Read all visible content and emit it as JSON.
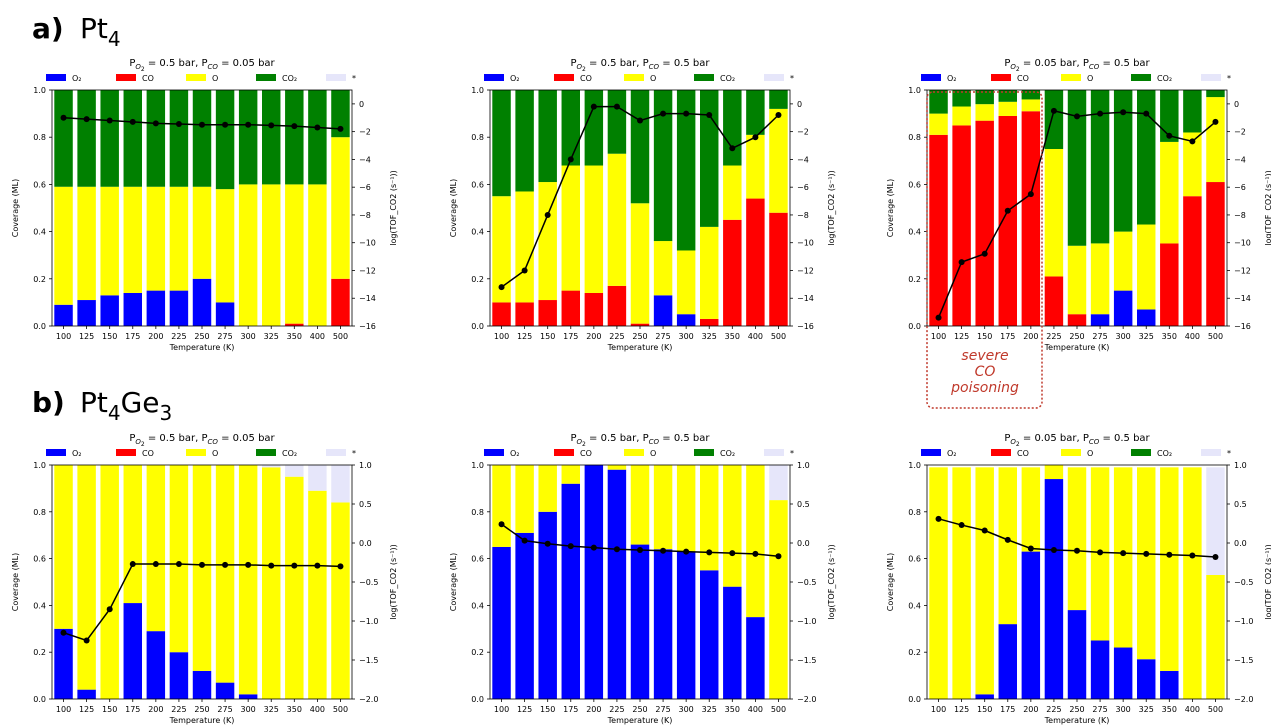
{
  "figure": {
    "row_a_label": "a)",
    "row_a_species": "Pt",
    "row_a_sub": "4",
    "row_b_label": "b)",
    "row_b_species_1": "Pt",
    "row_b_sub_1": "4",
    "row_b_species_2": "Ge",
    "row_b_sub_2": "3",
    "annotation": [
      "severe",
      "CO",
      "poisoning"
    ]
  },
  "colors": {
    "O2": "#0000ff",
    "CO": "#ff0000",
    "O": "#ffff00",
    "CO2": "#008000",
    "star": "#e6e6fa",
    "line": "#000000",
    "annotation": "#c0392b"
  },
  "legend": [
    "O₂",
    "CO",
    "O",
    "CO₂",
    "*"
  ],
  "chart_data": [
    {
      "type": "bar",
      "stacked": true,
      "title": "P_O2 = 0.5 bar, P_CO = 0.05 bar",
      "xlabel": "Temperature (K)",
      "ylabel": "Coverage (ML)",
      "y2label": "log(TOF_CO2 (s⁻¹))",
      "categories": [
        "100",
        "125",
        "150",
        "175",
        "200",
        "225",
        "250",
        "275",
        "300",
        "325",
        "350",
        "400",
        "500"
      ],
      "ylim": [
        0,
        1
      ],
      "y2lim": [
        -16,
        1
      ],
      "yticks": [
        "0.0",
        "0.2",
        "0.4",
        "0.6",
        "0.8",
        "1.0"
      ],
      "y2ticks": [
        "0",
        "−2",
        "−4",
        "−6",
        "−8",
        "−10",
        "−12",
        "−14",
        "−16"
      ],
      "series": [
        {
          "name": "O₂",
          "values": [
            0.09,
            0.11,
            0.13,
            0.14,
            0.15,
            0.15,
            0.2,
            0.1,
            0,
            0,
            0,
            0,
            0
          ]
        },
        {
          "name": "CO",
          "values": [
            0,
            0,
            0,
            0,
            0,
            0,
            0,
            0,
            0,
            0,
            0.01,
            0,
            0.2
          ]
        },
        {
          "name": "O",
          "values": [
            0.5,
            0.48,
            0.46,
            0.45,
            0.44,
            0.44,
            0.39,
            0.48,
            0.6,
            0.6,
            0.59,
            0.6,
            0.6
          ]
        },
        {
          "name": "CO₂",
          "values": [
            0.41,
            0.41,
            0.41,
            0.41,
            0.41,
            0.41,
            0.41,
            0.42,
            0.4,
            0.4,
            0.4,
            0.4,
            0.2
          ]
        },
        {
          "name": "*",
          "values": [
            0,
            0,
            0,
            0,
            0,
            0,
            0,
            0,
            0,
            0,
            0,
            0,
            0
          ]
        }
      ],
      "line": {
        "name": "log TOF",
        "values": [
          -1.0,
          -1.1,
          -1.2,
          -1.3,
          -1.4,
          -1.45,
          -1.5,
          -1.5,
          -1.5,
          -1.55,
          -1.6,
          -1.7,
          -1.8
        ]
      }
    },
    {
      "type": "bar",
      "stacked": true,
      "title": "P_O2 = 0.5 bar, P_CO = 0.5 bar",
      "xlabel": "Temperature (K)",
      "ylabel": "Coverage (ML)",
      "y2label": "log(TOF_CO2 (s⁻¹))",
      "categories": [
        "100",
        "125",
        "150",
        "175",
        "200",
        "225",
        "250",
        "275",
        "300",
        "325",
        "350",
        "400",
        "500"
      ],
      "ylim": [
        0,
        1
      ],
      "y2lim": [
        -16,
        1
      ],
      "yticks": [
        "0.0",
        "0.2",
        "0.4",
        "0.6",
        "0.8",
        "1.0"
      ],
      "y2ticks": [
        "0",
        "−2",
        "−4",
        "−6",
        "−8",
        "−10",
        "−12",
        "−14",
        "−16"
      ],
      "series": [
        {
          "name": "O₂",
          "values": [
            0,
            0,
            0,
            0,
            0,
            0,
            0,
            0.13,
            0.05,
            0,
            0,
            0,
            0
          ]
        },
        {
          "name": "CO",
          "values": [
            0.1,
            0.1,
            0.11,
            0.15,
            0.14,
            0.17,
            0.01,
            0,
            0,
            0.03,
            0.45,
            0.54,
            0.48
          ]
        },
        {
          "name": "O",
          "values": [
            0.45,
            0.47,
            0.5,
            0.53,
            0.54,
            0.56,
            0.51,
            0.23,
            0.27,
            0.39,
            0.23,
            0.27,
            0.44
          ]
        },
        {
          "name": "CO₂",
          "values": [
            0.45,
            0.43,
            0.39,
            0.32,
            0.32,
            0.27,
            0.48,
            0.64,
            0.68,
            0.58,
            0.32,
            0.19,
            0.08
          ]
        },
        {
          "name": "*",
          "values": [
            0,
            0,
            0,
            0,
            0,
            0,
            0,
            0,
            0,
            0,
            0,
            0,
            0
          ]
        }
      ],
      "line": {
        "name": "log TOF",
        "values": [
          -13.2,
          -12.0,
          -8.0,
          -4.0,
          -0.2,
          -0.2,
          -1.2,
          -0.7,
          -0.7,
          -0.8,
          -3.2,
          -2.4,
          -0.8
        ]
      }
    },
    {
      "type": "bar",
      "stacked": true,
      "title": "P_O2 = 0.05 bar, P_CO = 0.5 bar",
      "xlabel": "Temperature (K)",
      "ylabel": "Coverage (ML)",
      "y2label": "log(TOF_CO2 (s⁻¹))",
      "categories": [
        "100",
        "125",
        "150",
        "175",
        "200",
        "225",
        "250",
        "275",
        "300",
        "325",
        "350",
        "400",
        "500"
      ],
      "ylim": [
        0,
        1
      ],
      "y2lim": [
        -16,
        1
      ],
      "yticks": [
        "0.0",
        "0.2",
        "0.4",
        "0.6",
        "0.8",
        "1.0"
      ],
      "y2ticks": [
        "0",
        "−2",
        "−4",
        "−6",
        "−8",
        "−10",
        "−12",
        "−14",
        "−16"
      ],
      "series": [
        {
          "name": "O₂",
          "values": [
            0,
            0,
            0,
            0,
            0,
            0,
            0,
            0.05,
            0.15,
            0.07,
            0,
            0,
            0
          ]
        },
        {
          "name": "CO",
          "values": [
            0.81,
            0.85,
            0.87,
            0.89,
            0.91,
            0.21,
            0.05,
            0,
            0,
            0,
            0.35,
            0.55,
            0.61
          ]
        },
        {
          "name": "O",
          "values": [
            0.09,
            0.08,
            0.07,
            0.06,
            0.05,
            0.54,
            0.29,
            0.3,
            0.25,
            0.36,
            0.43,
            0.27,
            0.36
          ]
        },
        {
          "name": "CO₂",
          "values": [
            0.1,
            0.07,
            0.06,
            0.05,
            0.04,
            0.25,
            0.66,
            0.65,
            0.6,
            0.57,
            0.22,
            0.18,
            0.03
          ]
        },
        {
          "name": "*",
          "values": [
            0,
            0,
            0,
            0,
            0,
            0,
            0,
            0,
            0,
            0,
            0,
            0,
            0
          ]
        }
      ],
      "line": {
        "name": "log TOF",
        "values": [
          -15.4,
          -11.4,
          -10.8,
          -7.7,
          -6.5,
          -0.5,
          -0.9,
          -0.7,
          -0.6,
          -0.7,
          -2.3,
          -2.7,
          -1.3
        ]
      },
      "highlight_categories": [
        "100",
        "125",
        "150",
        "175",
        "200"
      ]
    },
    {
      "type": "bar",
      "stacked": true,
      "title": "P_O2 = 0.5 bar, P_CO = 0.05 bar",
      "xlabel": "Temperature (K)",
      "ylabel": "Coverage (ML)",
      "y2label": "log(TOF_CO2 (s⁻¹))",
      "categories": [
        "100",
        "125",
        "150",
        "175",
        "200",
        "225",
        "250",
        "275",
        "300",
        "325",
        "350",
        "400",
        "500"
      ],
      "ylim": [
        0,
        1
      ],
      "y2lim": [
        -2,
        1
      ],
      "yticks": [
        "0.0",
        "0.2",
        "0.4",
        "0.6",
        "0.8",
        "1.0"
      ],
      "y2ticks": [
        "−2.0",
        "−1.5",
        "−1.0",
        "−0.5",
        "0.0",
        "0.5",
        "1.0"
      ],
      "series": [
        {
          "name": "O₂",
          "values": [
            0.3,
            0.04,
            0,
            0.41,
            0.29,
            0.2,
            0.12,
            0.07,
            0.02,
            0,
            0,
            0,
            0
          ]
        },
        {
          "name": "CO",
          "values": [
            0,
            0,
            0,
            0,
            0,
            0,
            0,
            0,
            0,
            0,
            0,
            0,
            0
          ]
        },
        {
          "name": "O",
          "values": [
            0.7,
            0.96,
            1.0,
            0.59,
            0.71,
            0.8,
            0.88,
            0.93,
            0.98,
            0.99,
            0.95,
            0.89,
            0.84
          ]
        },
        {
          "name": "CO₂",
          "values": [
            0,
            0,
            0,
            0,
            0,
            0,
            0,
            0,
            0,
            0,
            0,
            0,
            0
          ]
        },
        {
          "name": "*",
          "values": [
            0,
            0,
            0,
            0,
            0,
            0,
            0,
            0,
            0,
            0.01,
            0.05,
            0.11,
            0.16
          ]
        }
      ],
      "line": {
        "name": "log TOF",
        "values": [
          -1.15,
          -1.25,
          -0.85,
          -0.27,
          -0.27,
          -0.27,
          -0.28,
          -0.28,
          -0.28,
          -0.29,
          -0.29,
          -0.29,
          -0.3
        ]
      }
    },
    {
      "type": "bar",
      "stacked": true,
      "title": "P_O2 = 0.5 bar, P_CO = 0.5 bar",
      "xlabel": "Temperature (K)",
      "ylabel": "Coverage (ML)",
      "y2label": "log(TOF_CO2 (s⁻¹))",
      "categories": [
        "100",
        "125",
        "150",
        "175",
        "200",
        "225",
        "250",
        "275",
        "300",
        "325",
        "350",
        "400",
        "500"
      ],
      "ylim": [
        0,
        1
      ],
      "y2lim": [
        -2,
        1
      ],
      "yticks": [
        "0.0",
        "0.2",
        "0.4",
        "0.6",
        "0.8",
        "1.0"
      ],
      "y2ticks": [
        "−2.0",
        "−1.5",
        "−1.0",
        "−0.5",
        "0.0",
        "0.5",
        "1.0"
      ],
      "series": [
        {
          "name": "O₂",
          "values": [
            0.65,
            0.71,
            0.8,
            0.92,
            1.0,
            0.98,
            0.66,
            0.64,
            0.63,
            0.55,
            0.48,
            0.35,
            0
          ]
        },
        {
          "name": "CO",
          "values": [
            0,
            0,
            0,
            0,
            0,
            0,
            0,
            0,
            0,
            0,
            0,
            0,
            0
          ]
        },
        {
          "name": "O",
          "values": [
            0.35,
            0.29,
            0.2,
            0.08,
            0,
            0.02,
            0.34,
            0.36,
            0.37,
            0.45,
            0.52,
            0.65,
            0.85
          ]
        },
        {
          "name": "CO₂",
          "values": [
            0,
            0,
            0,
            0,
            0,
            0,
            0,
            0,
            0,
            0,
            0,
            0,
            0
          ]
        },
        {
          "name": "*",
          "values": [
            0,
            0,
            0,
            0,
            0,
            0,
            0,
            0,
            0,
            0,
            0,
            0,
            0.15
          ]
        }
      ],
      "line": {
        "name": "log TOF",
        "values": [
          0.24,
          0.03,
          -0.01,
          -0.04,
          -0.06,
          -0.08,
          -0.09,
          -0.1,
          -0.11,
          -0.12,
          -0.13,
          -0.14,
          -0.17
        ]
      }
    },
    {
      "type": "bar",
      "stacked": true,
      "title": "P_O2 = 0.05 bar, P_CO = 0.5 bar",
      "xlabel": "Temperature (K)",
      "ylabel": "Coverage (ML)",
      "y2label": "log(TOF_CO2 (s⁻¹))",
      "categories": [
        "100",
        "125",
        "150",
        "175",
        "200",
        "225",
        "250",
        "275",
        "300",
        "325",
        "350",
        "400",
        "500"
      ],
      "ylim": [
        0,
        1
      ],
      "y2lim": [
        -2,
        1
      ],
      "yticks": [
        "0.0",
        "0.2",
        "0.4",
        "0.6",
        "0.8",
        "1.0"
      ],
      "y2ticks": [
        "−2.0",
        "−1.5",
        "−1.0",
        "−0.5",
        "0.0",
        "0.5",
        "1.0"
      ],
      "series": [
        {
          "name": "O₂",
          "values": [
            0,
            0,
            0.02,
            0.32,
            0.63,
            0.94,
            0.38,
            0.25,
            0.22,
            0.17,
            0.12,
            0,
            0
          ]
        },
        {
          "name": "CO",
          "values": [
            0,
            0,
            0,
            0,
            0,
            0,
            0,
            0,
            0,
            0,
            0,
            0,
            0
          ]
        },
        {
          "name": "O",
          "values": [
            0.99,
            0.99,
            0.97,
            0.67,
            0.36,
            0.06,
            0.61,
            0.74,
            0.77,
            0.82,
            0.87,
            0.99,
            0.53
          ]
        },
        {
          "name": "CO₂",
          "values": [
            0,
            0,
            0,
            0,
            0,
            0,
            0,
            0,
            0,
            0,
            0,
            0,
            0
          ]
        },
        {
          "name": "*",
          "values": [
            0,
            0,
            0,
            0,
            0,
            0,
            0,
            0,
            0,
            0,
            0,
            0,
            0.46
          ]
        }
      ],
      "line": {
        "name": "log TOF",
        "values": [
          0.31,
          0.23,
          0.16,
          0.04,
          -0.07,
          -0.09,
          -0.1,
          -0.12,
          -0.13,
          -0.14,
          -0.15,
          -0.16,
          -0.18
        ]
      }
    }
  ]
}
